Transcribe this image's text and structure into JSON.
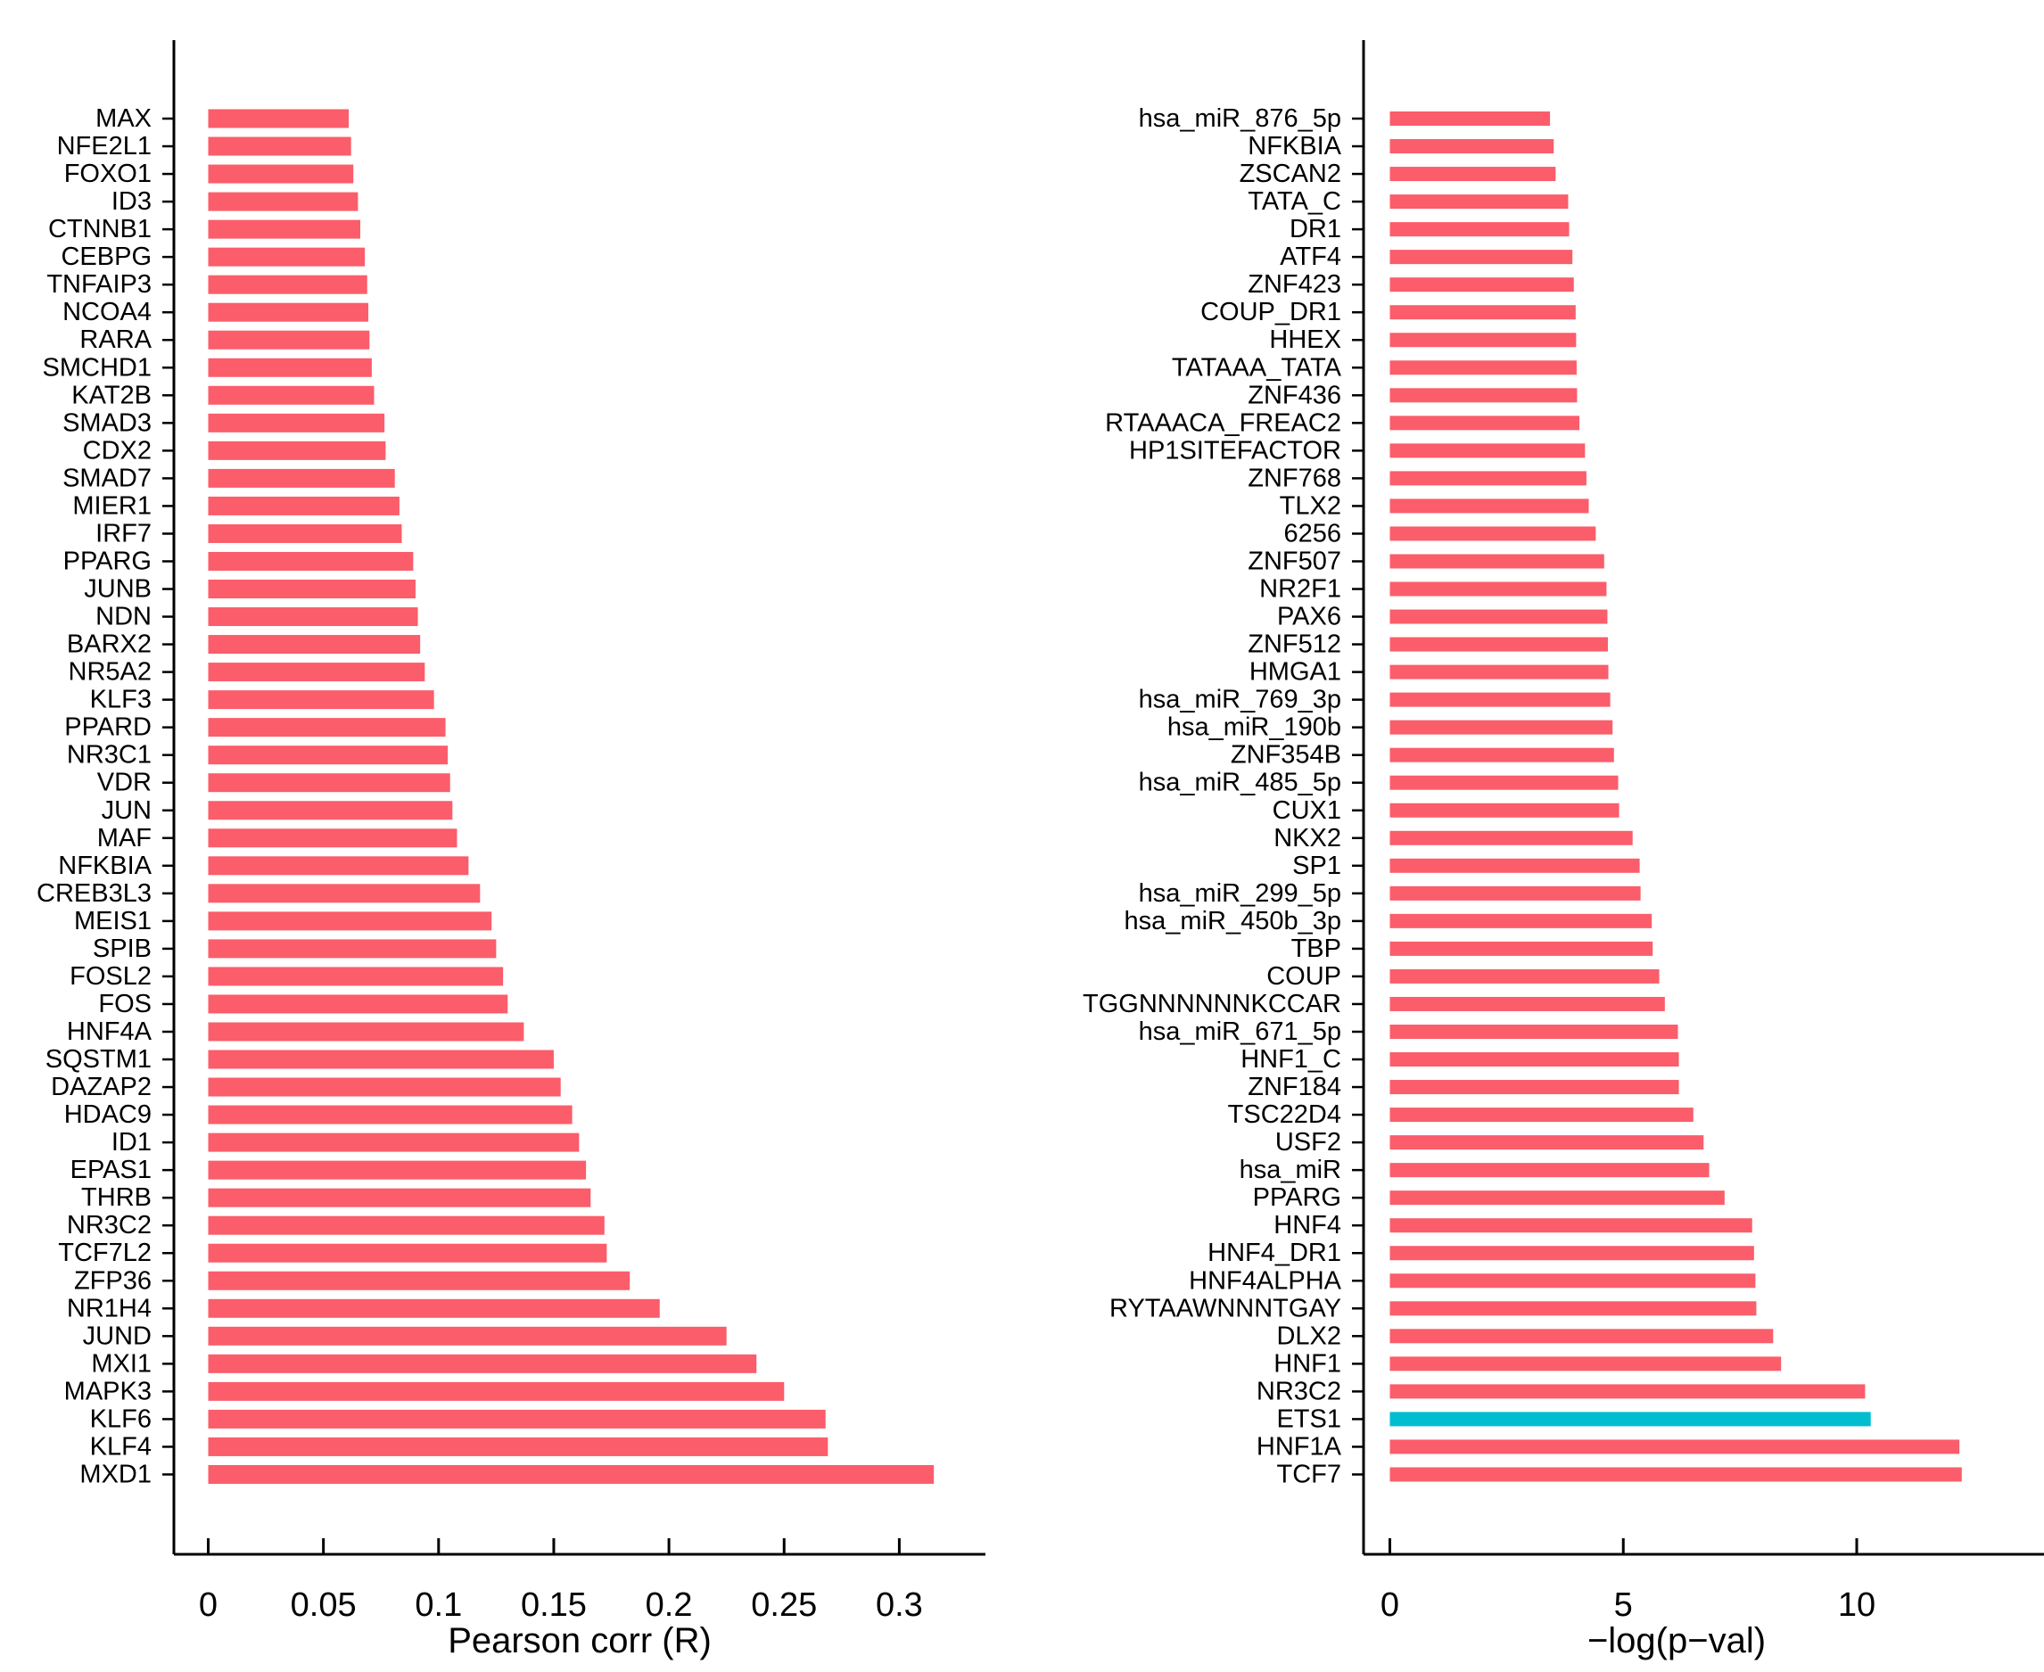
{
  "chart_data": [
    {
      "type": "bar",
      "orientation": "horizontal",
      "panel": "left",
      "title": "",
      "xlabel": "Pearson corr (R)",
      "ylabel": "",
      "bar_color": "#FB5D6A",
      "axis_color": "#000000",
      "xlim": [
        0,
        0.3375
      ],
      "x_ticks": [
        0,
        0.05,
        0.1,
        0.15,
        0.2,
        0.25,
        0.3
      ],
      "x_tick_labels": [
        "0",
        "0.05",
        "0.1",
        "0.15",
        "0.2",
        "0.25",
        "0.3"
      ],
      "grid": false,
      "legend": false,
      "categories": [
        "MAX",
        "NFE2L1",
        "FOXO1",
        "ID3",
        "CTNNB1",
        "CEBPG",
        "TNFAIP3",
        "NCOA4",
        "RARA",
        "SMCHD1",
        "KAT2B",
        "SMAD3",
        "CDX2",
        "SMAD7",
        "MIER1",
        "IRF7",
        "PPARG",
        "JUNB",
        "NDN",
        "BARX2",
        "NR5A2",
        "KLF3",
        "PPARD",
        "NR3C1",
        "VDR",
        "JUN",
        "MAF",
        "NFKBIA",
        "CREB3L3",
        "MEIS1",
        "SPIB",
        "FOSL2",
        "FOS",
        "HNF4A",
        "SQSTM1",
        "DAZAP2",
        "HDAC9",
        "ID1",
        "EPAS1",
        "THRB",
        "NR3C2",
        "TCF7L2",
        "ZFP36",
        "NR1H4",
        "JUND",
        "MXI1",
        "MAPK3",
        "KLF6",
        "KLF4",
        "MXD1"
      ],
      "values": [
        0.061,
        0.062,
        0.063,
        0.065,
        0.066,
        0.068,
        0.069,
        0.0695,
        0.07,
        0.071,
        0.072,
        0.0765,
        0.077,
        0.081,
        0.083,
        0.084,
        0.089,
        0.09,
        0.091,
        0.092,
        0.094,
        0.098,
        0.103,
        0.104,
        0.105,
        0.106,
        0.108,
        0.113,
        0.118,
        0.123,
        0.125,
        0.128,
        0.13,
        0.137,
        0.15,
        0.153,
        0.158,
        0.161,
        0.164,
        0.166,
        0.172,
        0.173,
        0.183,
        0.196,
        0.225,
        0.238,
        0.25,
        0.268,
        0.269,
        0.315
      ]
    },
    {
      "type": "bar",
      "orientation": "horizontal",
      "panel": "right",
      "title": "",
      "xlabel": "−log(p−val)",
      "ylabel": "",
      "bar_color": "#FB5D6A",
      "axis_color": "#000000",
      "xlim": [
        0,
        14
      ],
      "x_ticks": [
        0,
        5,
        10
      ],
      "x_tick_labels": [
        "0",
        "5",
        "10"
      ],
      "grid": false,
      "legend": false,
      "highlight": {
        "label": "ETS1",
        "color": "#00BDD0"
      },
      "categories": [
        "hsa_miR_876_5p",
        "NFKBIA",
        "ZSCAN2",
        "TATA_C",
        "DR1",
        "ATF4",
        "ZNF423",
        "COUP_DR1",
        "HHEX",
        "TATAAA_TATA",
        "ZNF436",
        "RTAAACA_FREAC2",
        "HP1SITEFACTOR",
        "ZNF768",
        "TLX2",
        "6256",
        "ZNF507",
        "NR2F1",
        "PAX6",
        "ZNF512",
        "HMGA1",
        "hsa_miR_769_3p",
        "hsa_miR_190b",
        "ZNF354B",
        "hsa_miR_485_5p",
        "CUX1",
        "NKX2",
        "SP1",
        "hsa_miR_299_5p",
        "hsa_miR_450b_3p",
        "TBP",
        "COUP",
        "TGGNNNNNNKCCAR",
        "hsa_miR_671_5p",
        "HNF1_C",
        "ZNF184",
        "TSC22D4",
        "USF2",
        "hsa_miR",
        "PPARG",
        "HNF4",
        "HNF4_DR1",
        "HNF4ALPHA",
        "RYTAAWNNNTGAY",
        "DLX2",
        "HNF1",
        "NR3C2",
        "ETS1",
        "HNF1A",
        "TCF7"
      ],
      "values": [
        3.43,
        3.51,
        3.55,
        3.82,
        3.84,
        3.91,
        3.94,
        3.98,
        3.99,
        4.0,
        4.01,
        4.06,
        4.18,
        4.21,
        4.26,
        4.41,
        4.59,
        4.64,
        4.66,
        4.67,
        4.68,
        4.72,
        4.77,
        4.8,
        4.89,
        4.91,
        5.2,
        5.35,
        5.37,
        5.61,
        5.63,
        5.77,
        5.89,
        6.17,
        6.19,
        6.19,
        6.5,
        6.72,
        6.84,
        7.17,
        7.76,
        7.8,
        7.83,
        7.85,
        8.21,
        8.38,
        10.18,
        10.3,
        12.2,
        12.25
      ]
    }
  ]
}
